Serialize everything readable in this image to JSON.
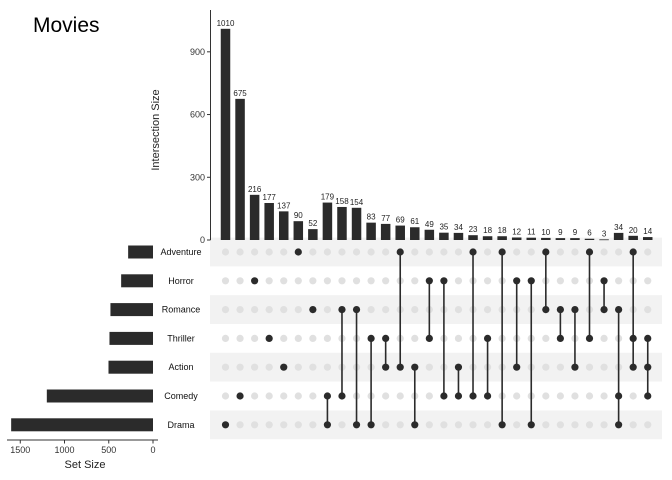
{
  "chart_data": {
    "type": "upset",
    "title": "Movies",
    "ylabel": "Intersection Size",
    "set_axis_label": "Set Size",
    "intersection_ylim": [
      0,
      1100
    ],
    "intersection_ticks": [
      "0",
      "300",
      "600",
      "900"
    ],
    "intersection_tick_values": [
      0,
      300,
      600,
      900
    ],
    "set_size_ticks": [
      "1500",
      "1000",
      "500",
      "0"
    ],
    "set_size_tick_values": [
      1500,
      1000,
      500,
      0
    ],
    "sets": [
      "Adventure",
      "Horror",
      "Romance",
      "Thriller",
      "Action",
      "Comedy",
      "Drama"
    ],
    "set_sizes": [
      281,
      360,
      481,
      492,
      503,
      1200,
      1603
    ],
    "intersections": [
      {
        "size": 1010,
        "label": "1010",
        "sets": [
          "Drama"
        ]
      },
      {
        "size": 675,
        "label": "675",
        "sets": [
          "Comedy"
        ]
      },
      {
        "size": 216,
        "label": "216",
        "sets": [
          "Horror"
        ]
      },
      {
        "size": 177,
        "label": "177",
        "sets": [
          "Thriller"
        ]
      },
      {
        "size": 137,
        "label": "137",
        "sets": [
          "Action"
        ]
      },
      {
        "size": 90,
        "label": "90",
        "sets": [
          "Adventure"
        ]
      },
      {
        "size": 52,
        "label": "52",
        "sets": [
          "Romance"
        ]
      },
      {
        "size": 179,
        "label": "179",
        "sets": [
          "Comedy",
          "Drama"
        ]
      },
      {
        "size": 158,
        "label": "158",
        "sets": [
          "Romance",
          "Comedy"
        ]
      },
      {
        "size": 154,
        "label": "154",
        "sets": [
          "Romance",
          "Drama"
        ]
      },
      {
        "size": 83,
        "label": "83",
        "sets": [
          "Thriller",
          "Drama"
        ]
      },
      {
        "size": 77,
        "label": "77",
        "sets": [
          "Thriller",
          "Action"
        ]
      },
      {
        "size": 69,
        "label": "69",
        "sets": [
          "Adventure",
          "Action"
        ]
      },
      {
        "size": 61,
        "label": "61",
        "sets": [
          "Action",
          "Drama"
        ]
      },
      {
        "size": 49,
        "label": "49",
        "sets": [
          "Horror",
          "Thriller"
        ]
      },
      {
        "size": 35,
        "label": "35",
        "sets": [
          "Horror",
          "Comedy"
        ]
      },
      {
        "size": 34,
        "label": "34",
        "sets": [
          "Action",
          "Comedy"
        ]
      },
      {
        "size": 23,
        "label": "23",
        "sets": [
          "Adventure",
          "Comedy"
        ]
      },
      {
        "size": 18,
        "label": "18",
        "sets": [
          "Thriller",
          "Comedy"
        ]
      },
      {
        "size": 18,
        "label": "18",
        "sets": [
          "Adventure",
          "Drama"
        ]
      },
      {
        "size": 12,
        "label": "12",
        "sets": [
          "Horror",
          "Action"
        ]
      },
      {
        "size": 11,
        "label": "11",
        "sets": [
          "Horror",
          "Drama"
        ]
      },
      {
        "size": 10,
        "label": "10",
        "sets": [
          "Adventure",
          "Romance"
        ]
      },
      {
        "size": 9,
        "label": "9",
        "sets": [
          "Romance",
          "Thriller"
        ]
      },
      {
        "size": 9,
        "label": "9",
        "sets": [
          "Romance",
          "Action"
        ]
      },
      {
        "size": 6,
        "label": "6",
        "sets": [
          "Adventure",
          "Thriller"
        ]
      },
      {
        "size": 3,
        "label": "3",
        "sets": [
          "Horror",
          "Romance"
        ]
      },
      {
        "size": 34,
        "label": "34",
        "sets": [
          "Romance",
          "Comedy",
          "Drama"
        ]
      },
      {
        "size": 20,
        "label": "20",
        "sets": [
          "Adventure",
          "Thriller",
          "Action"
        ]
      },
      {
        "size": 14,
        "label": "14",
        "sets": [
          "Thriller",
          "Action",
          "Comedy"
        ]
      }
    ]
  },
  "colors": {
    "bar": "#2b2b2b",
    "dot_active": "#2b2b2b",
    "dot_inactive": "#e0e0e0",
    "stripe": "#f2f2f2",
    "axis": "#333333"
  }
}
